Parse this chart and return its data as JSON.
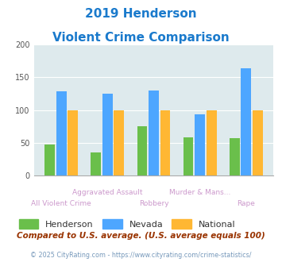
{
  "title_line1": "2019 Henderson",
  "title_line2": "Violent Crime Comparison",
  "categories": [
    "All Violent Crime",
    "Aggravated Assault",
    "Robbery",
    "Murder & Mans...",
    "Rape"
  ],
  "henderson": [
    47,
    35,
    75,
    58,
    57
  ],
  "nevada": [
    129,
    125,
    130,
    94,
    164
  ],
  "national": [
    100,
    100,
    100,
    100,
    100
  ],
  "henderson_color": "#6abf4b",
  "nevada_color": "#4da6ff",
  "national_color": "#ffb733",
  "ylim": [
    0,
    200
  ],
  "yticks": [
    0,
    50,
    100,
    150,
    200
  ],
  "background_color": "#deeaed",
  "title_color": "#1a7acc",
  "xlabel_color": "#cc99cc",
  "legend_label_color": "#333333",
  "footnote1": "Compared to U.S. average. (U.S. average equals 100)",
  "footnote2": "© 2025 CityRating.com - https://www.cityrating.com/crime-statistics/",
  "footnote1_color": "#993300",
  "footnote2_color": "#7799bb",
  "tick_labels_row1": [
    "",
    "Aggravated Assault",
    "",
    "Murder & Mans...",
    ""
  ],
  "tick_labels_row2": [
    "All Violent Crime",
    "",
    "Robbery",
    "",
    "Rape"
  ],
  "bar_width": 0.22,
  "bar_gap": 0.03
}
